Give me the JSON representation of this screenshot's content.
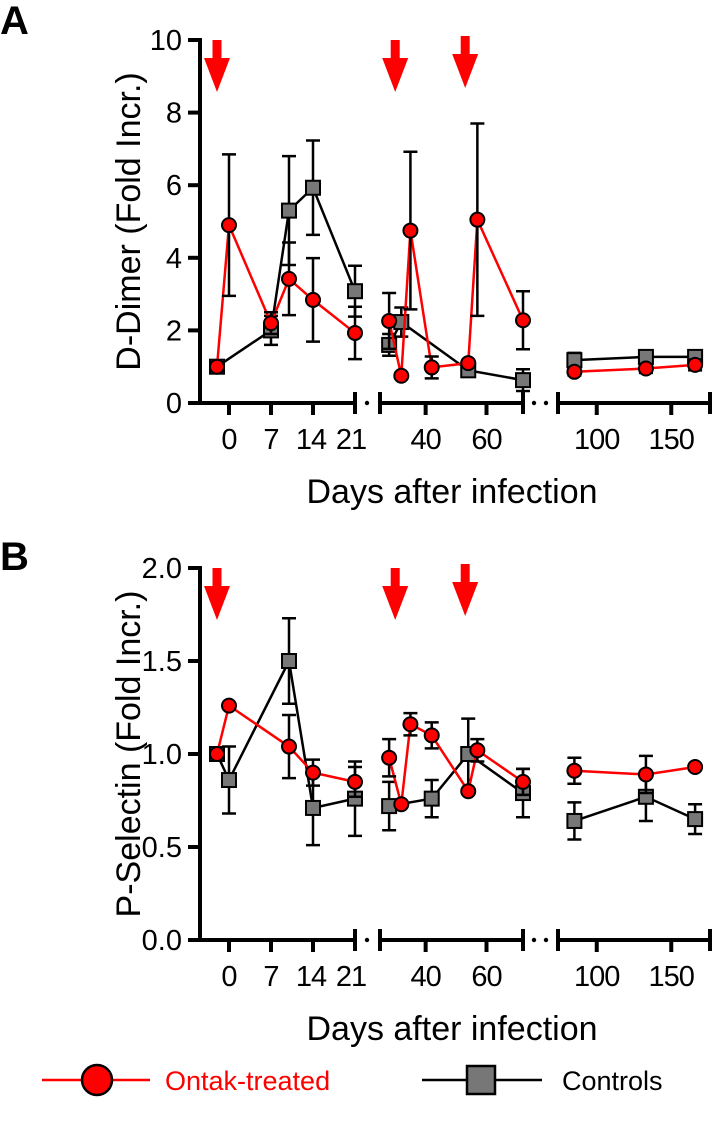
{
  "chart_data": [
    {
      "type": "line",
      "panel_label": "A",
      "ylabel": "D-Dimer (Fold Incr.)",
      "xlabel": "Days after infection",
      "ylim": [
        0,
        10
      ],
      "yticks": [
        "0",
        "2",
        "4",
        "6",
        "8",
        "10"
      ],
      "ytick_values": [
        0,
        2,
        4,
        6,
        8,
        10
      ],
      "x_segments": [
        [
          -5,
          21
        ],
        [
          25,
          72
        ],
        [
          74,
          176
        ]
      ],
      "xticks": [
        {
          "value": 0,
          "label": "0"
        },
        {
          "value": 7,
          "label": "7"
        },
        {
          "value": 14,
          "label": "14"
        },
        {
          "value": 21,
          "label": "21"
        },
        {
          "value": 40,
          "label": "40"
        },
        {
          "value": 60,
          "label": "60"
        },
        {
          "value": 100,
          "label": "100"
        },
        {
          "value": 150,
          "label": "150"
        }
      ],
      "treatment_arrows_days": [
        -2,
        30,
        53
      ],
      "series": [
        {
          "name": "Ontak-treated",
          "color": "#ff0000",
          "marker": "circle",
          "points": [
            {
              "seg": 0,
              "x": -2,
              "y": 1.0,
              "err": 0
            },
            {
              "seg": 0,
              "x": 0,
              "y": 4.9,
              "err": 1.95
            },
            {
              "seg": 0,
              "x": 7,
              "y": 2.2,
              "err": 0.3
            },
            {
              "seg": 0,
              "x": 10,
              "y": 3.42,
              "err": 1.0
            },
            {
              "seg": 0,
              "x": 14,
              "y": 2.84,
              "err": 1.15
            },
            {
              "seg": 0,
              "x": 21,
              "y": 1.93,
              "err": 0.72
            },
            {
              "seg": 1,
              "x": 28,
              "y": 2.26,
              "err": 0.77
            },
            {
              "seg": 1,
              "x": 32,
              "y": 0.75,
              "err": 0
            },
            {
              "seg": 1,
              "x": 35,
              "y": 4.75,
              "err": 2.17
            },
            {
              "seg": 1,
              "x": 42,
              "y": 0.98,
              "err": 0.3
            },
            {
              "seg": 1,
              "x": 54,
              "y": 1.1,
              "err": 0
            },
            {
              "seg": 1,
              "x": 57,
              "y": 5.05,
              "err": 2.65
            },
            {
              "seg": 1,
              "x": 72,
              "y": 2.28,
              "err": 0.8
            },
            {
              "seg": 2,
              "x": 85,
              "y": 0.86,
              "err": 0.1
            },
            {
              "seg": 2,
              "x": 133,
              "y": 0.95,
              "err": 0.12
            },
            {
              "seg": 2,
              "x": 166,
              "y": 1.05,
              "err": 0.15
            }
          ]
        },
        {
          "name": "Controls",
          "color": "#777777",
          "marker": "square",
          "points": [
            {
              "seg": 0,
              "x": -2,
              "y": 1.0,
              "err": 0
            },
            {
              "seg": 0,
              "x": 7,
              "y": 2.0,
              "err": 0.4
            },
            {
              "seg": 0,
              "x": 10,
              "y": 5.3,
              "err": 1.5
            },
            {
              "seg": 0,
              "x": 14,
              "y": 5.93,
              "err": 1.3
            },
            {
              "seg": 0,
              "x": 21,
              "y": 3.08,
              "err": 0.7
            },
            {
              "seg": 1,
              "x": 28,
              "y": 1.6,
              "err": 0.3
            },
            {
              "seg": 1,
              "x": 32,
              "y": 2.23,
              "err": 0.4
            },
            {
              "seg": 1,
              "x": 54,
              "y": 0.9,
              "err": 0.1
            },
            {
              "seg": 1,
              "x": 72,
              "y": 0.63,
              "err": 0.3
            },
            {
              "seg": 2,
              "x": 85,
              "y": 1.18,
              "err": 0.2
            },
            {
              "seg": 2,
              "x": 133,
              "y": 1.27,
              "err": 0.15
            },
            {
              "seg": 2,
              "x": 166,
              "y": 1.27,
              "err": 0.15
            }
          ]
        }
      ]
    },
    {
      "type": "line",
      "panel_label": "B",
      "ylabel": "P-Selectin (Fold Incr.)",
      "xlabel": "Days after infection",
      "ylim": [
        0,
        2.0
      ],
      "yticks": [
        "0.0",
        "0.5",
        "1.0",
        "1.5",
        "2.0"
      ],
      "ytick_values": [
        0,
        0.5,
        1.0,
        1.5,
        2.0
      ],
      "x_segments": [
        [
          -5,
          21
        ],
        [
          25,
          72
        ],
        [
          74,
          176
        ]
      ],
      "xticks": [
        {
          "value": 0,
          "label": "0"
        },
        {
          "value": 7,
          "label": "7"
        },
        {
          "value": 14,
          "label": "14"
        },
        {
          "value": 21,
          "label": "21"
        },
        {
          "value": 40,
          "label": "40"
        },
        {
          "value": 60,
          "label": "60"
        },
        {
          "value": 100,
          "label": "100"
        },
        {
          "value": 150,
          "label": "150"
        }
      ],
      "treatment_arrows_days": [
        -2,
        30,
        53
      ],
      "series": [
        {
          "name": "Ontak-treated",
          "color": "#ff0000",
          "marker": "circle",
          "points": [
            {
              "seg": 0,
              "x": -2,
              "y": 1.0,
              "err": 0
            },
            {
              "seg": 0,
              "x": 0,
              "y": 1.26,
              "err": 0
            },
            {
              "seg": 0,
              "x": 10,
              "y": 1.04,
              "err": 0.17
            },
            {
              "seg": 0,
              "x": 14,
              "y": 0.9,
              "err": 0.07
            },
            {
              "seg": 0,
              "x": 21,
              "y": 0.85,
              "err": 0.08
            },
            {
              "seg": 1,
              "x": 28,
              "y": 0.98,
              "err": 0.1
            },
            {
              "seg": 1,
              "x": 32,
              "y": 0.73,
              "err": 0
            },
            {
              "seg": 1,
              "x": 35,
              "y": 1.16,
              "err": 0.06
            },
            {
              "seg": 1,
              "x": 42,
              "y": 1.1,
              "err": 0.07
            },
            {
              "seg": 1,
              "x": 54,
              "y": 0.8,
              "err": 0
            },
            {
              "seg": 1,
              "x": 57,
              "y": 1.02,
              "err": 0.06
            },
            {
              "seg": 1,
              "x": 72,
              "y": 0.85,
              "err": 0.07
            },
            {
              "seg": 2,
              "x": 85,
              "y": 0.91,
              "err": 0.07
            },
            {
              "seg": 2,
              "x": 133,
              "y": 0.89,
              "err": 0.1
            },
            {
              "seg": 2,
              "x": 166,
              "y": 0.93,
              "err": 0
            }
          ]
        },
        {
          "name": "Controls",
          "color": "#777777",
          "marker": "square",
          "points": [
            {
              "seg": 0,
              "x": -2,
              "y": 1.0,
              "err": 0
            },
            {
              "seg": 0,
              "x": 0,
              "y": 0.86,
              "err": 0.18
            },
            {
              "seg": 0,
              "x": 10,
              "y": 1.5,
              "err": 0.23
            },
            {
              "seg": 0,
              "x": 14,
              "y": 0.71,
              "err": 0.2
            },
            {
              "seg": 0,
              "x": 21,
              "y": 0.76,
              "err": 0.2
            },
            {
              "seg": 1,
              "x": 28,
              "y": 0.72,
              "err": 0.13
            },
            {
              "seg": 1,
              "x": 42,
              "y": 0.76,
              "err": 0.1
            },
            {
              "seg": 1,
              "x": 54,
              "y": 1.0,
              "err": 0.19
            },
            {
              "seg": 1,
              "x": 72,
              "y": 0.79,
              "err": 0.13
            },
            {
              "seg": 2,
              "x": 85,
              "y": 0.64,
              "err": 0.1
            },
            {
              "seg": 2,
              "x": 133,
              "y": 0.77,
              "err": 0.13
            },
            {
              "seg": 2,
              "x": 166,
              "y": 0.65,
              "err": 0.08
            }
          ]
        }
      ]
    }
  ],
  "legend": {
    "items": [
      {
        "label": "Ontak-treated",
        "color": "#ff0000",
        "marker": "circle"
      },
      {
        "label": "Controls",
        "color": "#777777",
        "marker": "square"
      }
    ],
    "placement": "bottom"
  }
}
